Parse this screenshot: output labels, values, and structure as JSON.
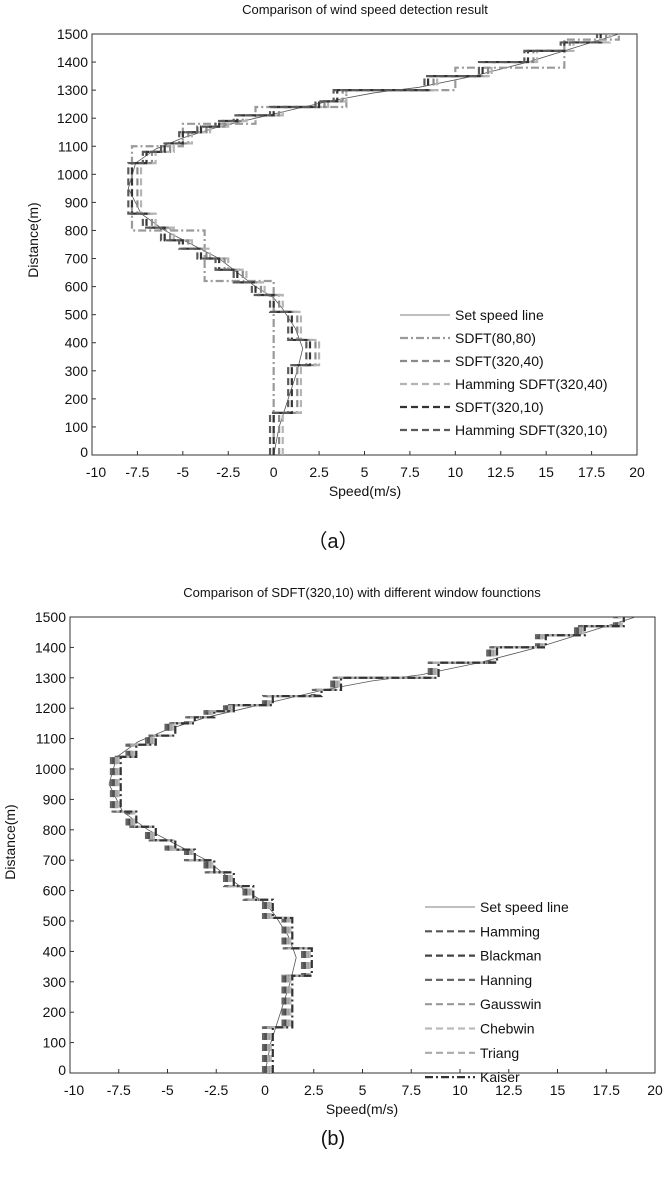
{
  "chart_data": [
    {
      "type": "line",
      "panel_caption": "（a）",
      "title": "Comparison of wind speed detection result",
      "xlabel": "Speed(m/s)",
      "ylabel": "Distance(m)",
      "xlim": [
        -10,
        20
      ],
      "ylim": [
        0,
        1500
      ],
      "xticks": [
        "-10",
        "-7.5",
        "-5",
        "-2.5",
        "0",
        "2.5",
        "5",
        "7.5",
        "10",
        "12.5",
        "15",
        "17.5",
        "20"
      ],
      "yticks": [
        "0",
        "100",
        "200",
        "300",
        "400",
        "500",
        "600",
        "700",
        "800",
        "900",
        "1000",
        "1100",
        "1200",
        "1300",
        "1400",
        "1500"
      ],
      "legend_position": "bottom-right",
      "set_speed_line": [
        [
          0,
          0
        ],
        [
          0.3,
          100
        ],
        [
          0.8,
          200
        ],
        [
          1.3,
          300
        ],
        [
          1.6,
          380
        ],
        [
          1.2,
          450
        ],
        [
          0.5,
          520
        ],
        [
          0,
          560
        ],
        [
          -1,
          600
        ],
        [
          -2,
          650
        ],
        [
          -3,
          700
        ],
        [
          -4.5,
          750
        ],
        [
          -6,
          800
        ],
        [
          -7.3,
          860
        ],
        [
          -8,
          950
        ],
        [
          -7.6,
          1040
        ],
        [
          -6.5,
          1090
        ],
        [
          -5,
          1130
        ],
        [
          -3,
          1170
        ],
        [
          -1,
          1200
        ],
        [
          1,
          1230
        ],
        [
          3,
          1260
        ],
        [
          5.5,
          1290
        ],
        [
          8,
          1310
        ],
        [
          11,
          1350
        ],
        [
          14,
          1400
        ],
        [
          16.5,
          1450
        ],
        [
          19,
          1500
        ]
      ],
      "step_profile": [
        [
          0,
          150,
          0
        ],
        [
          150,
          320,
          1
        ],
        [
          320,
          410,
          2
        ],
        [
          410,
          510,
          1
        ],
        [
          510,
          570,
          0
        ],
        [
          570,
          615,
          -1
        ],
        [
          615,
          660,
          -2
        ],
        [
          660,
          700,
          -3
        ],
        [
          700,
          735,
          -4
        ],
        [
          735,
          765,
          -5
        ],
        [
          765,
          810,
          -6
        ],
        [
          810,
          860,
          -7
        ],
        [
          860,
          1040,
          -7.8
        ],
        [
          1040,
          1080,
          -7
        ],
        [
          1080,
          1110,
          -6
        ],
        [
          1110,
          1150,
          -5
        ],
        [
          1150,
          1170,
          -4
        ],
        [
          1170,
          1190,
          -3
        ],
        [
          1190,
          1210,
          -2
        ],
        [
          1210,
          1240,
          0
        ],
        [
          1240,
          1260,
          2.5
        ],
        [
          1260,
          1300,
          3.5
        ],
        [
          1300,
          1350,
          8.5
        ],
        [
          1350,
          1400,
          11.5
        ],
        [
          1400,
          1440,
          14
        ],
        [
          1440,
          1470,
          16
        ],
        [
          1470,
          1500,
          18
        ]
      ],
      "series": [
        {
          "name": "Set speed line",
          "style": "solid",
          "color": "#555555",
          "data": "set_speed_line"
        },
        {
          "name": "SDFT(80,80)",
          "style": "dashdot",
          "color": "#9a9a9a",
          "steps": [
            [
              0,
              620,
              0
            ],
            [
              620,
              800,
              -3.8
            ],
            [
              800,
              1100,
              -7.8
            ],
            [
              1100,
              1180,
              -5
            ],
            [
              1180,
              1240,
              -1
            ],
            [
              1240,
              1300,
              4
            ],
            [
              1300,
              1380,
              10
            ],
            [
              1380,
              1480,
              16
            ],
            [
              1480,
              1500,
              19
            ]
          ]
        },
        {
          "name": "SDFT(320,40)",
          "style": "dash",
          "color": "#8a8a8a",
          "steps": "step_profile",
          "speed_offset": 0.3
        },
        {
          "name": "Hamming SDFT(320,40)",
          "style": "dash",
          "color": "#b4b4b4",
          "steps": "step_profile",
          "speed_offset": 0.5
        },
        {
          "name": "SDFT(320,10)",
          "style": "dash",
          "color": "#333333",
          "steps": "step_profile",
          "speed_offset": 0
        },
        {
          "name": "Hamming SDFT(320,10)",
          "style": "dash",
          "color": "#5a5a5a",
          "steps": "step_profile",
          "speed_offset": -0.2
        }
      ]
    },
    {
      "type": "line",
      "panel_caption": "(b)",
      "title": "Comparison of SDFT(320,10) with different window founctions",
      "xlabel": "Speed(m/s)",
      "ylabel": "Distance(m)",
      "xlim": [
        -10,
        20
      ],
      "ylim": [
        0,
        1500
      ],
      "xticks": [
        "-10",
        "-7.5",
        "-5",
        "-2.5",
        "0",
        "2.5",
        "5",
        "7.5",
        "10",
        "12.5",
        "15",
        "17.5",
        "20"
      ],
      "yticks": [
        "0",
        "100",
        "200",
        "300",
        "400",
        "500",
        "600",
        "700",
        "800",
        "900",
        "1000",
        "1100",
        "1200",
        "1300",
        "1400",
        "1500"
      ],
      "legend_position": "bottom-right",
      "series": [
        {
          "name": "Set speed line",
          "style": "solid",
          "color": "#555555",
          "data": "set_speed_line"
        },
        {
          "name": "Hamming",
          "style": "dash",
          "color": "#555555",
          "steps": "step_profile",
          "speed_offset": 0
        },
        {
          "name": "Blackman",
          "style": "dash",
          "color": "#444444",
          "steps": "step_profile",
          "speed_offset": 0.1
        },
        {
          "name": "Hanning",
          "style": "dash",
          "color": "#666666",
          "steps": "step_profile",
          "speed_offset": -0.1
        },
        {
          "name": "Gausswin",
          "style": "dash",
          "color": "#999999",
          "steps": "step_profile",
          "speed_offset": 0.2
        },
        {
          "name": "Chebwin",
          "style": "dash",
          "color": "#bbbbbb",
          "steps": "step_profile",
          "speed_offset": 0.3
        },
        {
          "name": "Triang",
          "style": "dash",
          "color": "#aaaaaa",
          "steps": "step_profile",
          "speed_offset": 0.15
        },
        {
          "name": "Kaiser",
          "style": "dashdot",
          "color": "#333333",
          "steps": "step_profile",
          "speed_offset": 0.4
        }
      ]
    }
  ]
}
